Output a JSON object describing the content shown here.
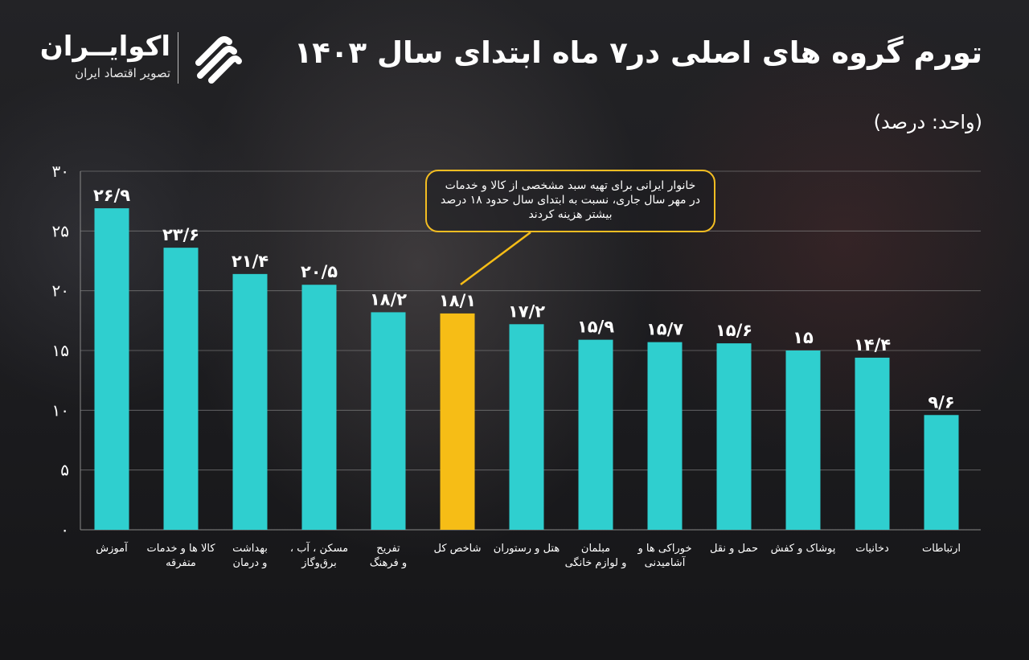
{
  "header": {
    "title": "تورم گروه های اصلی در۷ ماه ابتدای سال ۱۴۰۳",
    "unit": "(واحد: درصد)"
  },
  "logo": {
    "name": "اکوایــران",
    "tagline": "تصویر اقتصاد ایران"
  },
  "callout": {
    "text": "خانوار ایرانی برای تهیه سبد مشخصی از کالا و خدمات در مهر سال جاری، نسبت به ابتدای سال حدود ۱۸ درصد بیشتر هزینه کردند"
  },
  "colors": {
    "bar": "#2fcfcf",
    "highlight": "#f6bd16",
    "text": "#ffffff",
    "grid": "#8a8a8a"
  },
  "chart_data": {
    "type": "bar",
    "title": "تورم گروه های اصلی در۷ ماه ابتدای سال ۱۴۰۳",
    "ylabel": "(واحد: درصد)",
    "ylim": [
      0,
      30
    ],
    "grid": true,
    "y_ticks": [
      0,
      5,
      10,
      15,
      20,
      25,
      30
    ],
    "y_tick_labels": [
      "۰",
      "۵",
      "۱۰",
      "۱۵",
      "۲۰",
      "۲۵",
      "۳۰"
    ],
    "categories": [
      "آموزش",
      "کالا ها و خدمات متفرقه",
      "بهداشت و درمان",
      "مسکن ، آب ، برق‌وگاز",
      "تفریح و فرهنگ",
      "شاخص کل",
      "هتل و رستوران",
      "مبلمان و لوازم خانگی",
      "خوراکی ها و آشامیدنی",
      "حمل و نقل",
      "پوشاک و کفش",
      "دخانیات",
      "ارتباطات"
    ],
    "category_lines": [
      [
        "آموزش"
      ],
      [
        "کالا ها و خدمات",
        "متفرقه"
      ],
      [
        "بهداشت",
        "و درمان"
      ],
      [
        "مسکن ، آب ،",
        "برق‌وگاز"
      ],
      [
        "تفریح",
        "و فرهنگ"
      ],
      [
        "شاخص کل"
      ],
      [
        "هتل و رستوران"
      ],
      [
        "مبلمان",
        "و لوازم خانگی"
      ],
      [
        "خوراکی ها و",
        "آشامیدنی"
      ],
      [
        "حمل و نقل"
      ],
      [
        "پوشاک و کفش"
      ],
      [
        "دخانیات"
      ],
      [
        "ارتباطات"
      ]
    ],
    "values": [
      26.9,
      23.6,
      21.4,
      20.5,
      18.2,
      18.1,
      17.2,
      15.9,
      15.7,
      15.6,
      15,
      14.4,
      9.6
    ],
    "value_labels": [
      "۲۶/۹",
      "۲۳/۶",
      "۲۱/۴",
      "۲۰/۵",
      "۱۸/۲",
      "۱۸/۱",
      "۱۷/۲",
      "۱۵/۹",
      "۱۵/۷",
      "۱۵/۶",
      "۱۵",
      "۱۴/۴",
      "۹/۶"
    ],
    "highlight_index": 5
  }
}
